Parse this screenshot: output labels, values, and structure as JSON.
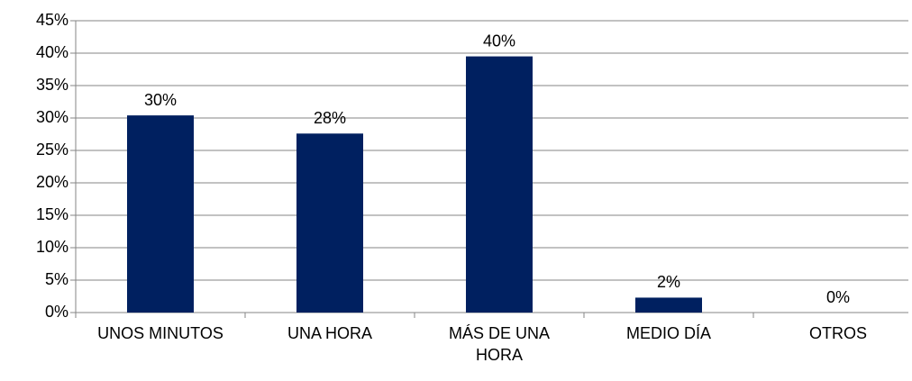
{
  "chart_data": {
    "type": "bar",
    "categories": [
      "UNOS MINUTOS",
      "UNA HORA",
      "MÁS DE UNA HORA",
      "MEDIO DÍA",
      "OTROS"
    ],
    "values": [
      30.4,
      27.6,
      39.5,
      2.3,
      0
    ],
    "value_labels": [
      "30%",
      "28%",
      "40%",
      "2%",
      "0%"
    ],
    "color": "#002060",
    "ylim": [
      0,
      45
    ],
    "yticks": [
      {
        "value": 0,
        "label": "0%"
      },
      {
        "value": 5,
        "label": "5%"
      },
      {
        "value": 10,
        "label": "10%"
      },
      {
        "value": 15,
        "label": "15%"
      },
      {
        "value": 20,
        "label": "20%"
      },
      {
        "value": 25,
        "label": "25%"
      },
      {
        "value": 30,
        "label": "30%"
      },
      {
        "value": 35,
        "label": "35%"
      },
      {
        "value": 40,
        "label": "40%"
      },
      {
        "value": 45,
        "label": "45%"
      }
    ],
    "grid": true
  }
}
